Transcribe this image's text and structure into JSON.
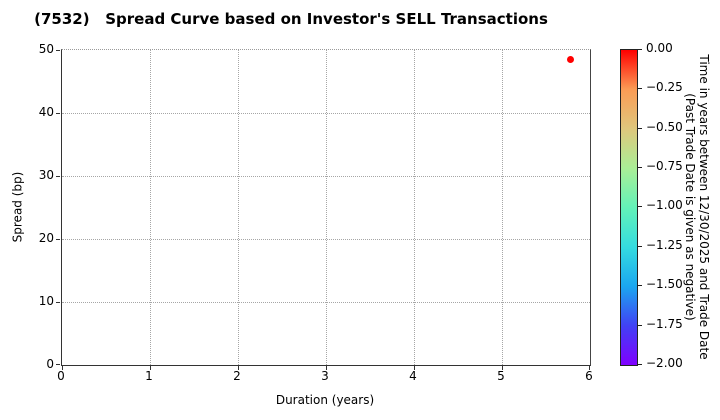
{
  "chart_data": {
    "type": "scatter",
    "title": "(7532)   Spread Curve based on Investor's SELL Transactions",
    "xlabel": "Duration (years)",
    "ylabel": "Spread (bp)",
    "xlim": [
      0,
      6
    ],
    "ylim": [
      0,
      50
    ],
    "xticks": [
      "0",
      "1",
      "2",
      "3",
      "4",
      "5",
      "6"
    ],
    "yticks": [
      "0",
      "10",
      "20",
      "30",
      "40",
      "50"
    ],
    "grid": true,
    "legend": "none",
    "points": [
      {
        "x": 5.78,
        "y": 48.5,
        "color": "#ff0000",
        "colorbar_value": 0.0
      }
    ],
    "colorbar": {
      "colormap": "rainbow",
      "range_top": 0.0,
      "range_bottom": -2.0,
      "ticks": [
        "0.00",
        "−0.25",
        "−0.50",
        "−0.75",
        "−1.00",
        "−1.25",
        "−1.50",
        "−1.75",
        "−2.00"
      ],
      "gradient_stops": [
        "#ff0000",
        "#fb9b55",
        "#dfc77c",
        "#aaee96",
        "#63f2b8",
        "#35dcdf",
        "#1ba7f0",
        "#4141f5",
        "#7f00fe"
      ],
      "label_line1": "Time in years between 12/30/2025 and Trade Date",
      "label_line2": "(Past Trade Date is given as negative)"
    }
  }
}
